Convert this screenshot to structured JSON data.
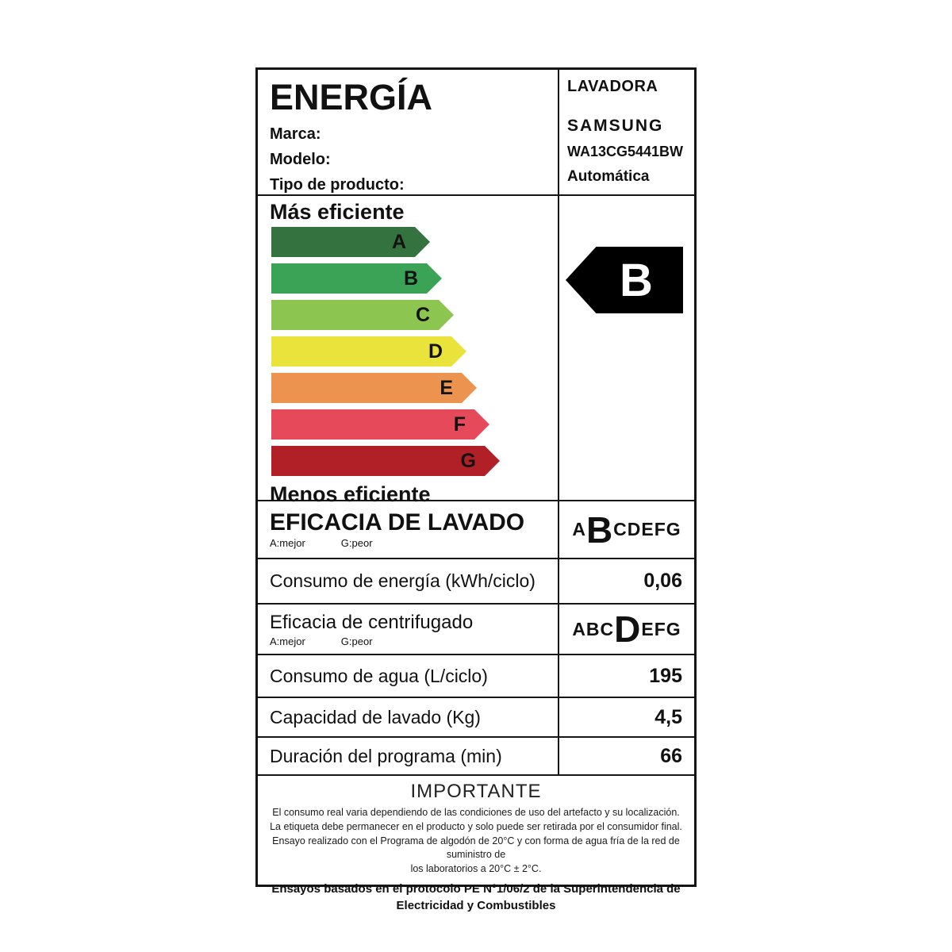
{
  "header": {
    "title": "ENERGÍA",
    "category": "LAVADORA",
    "brand_label": "Marca:",
    "brand_value": "SAMSUNG",
    "model_label": "Modelo:",
    "model_value": "WA13CG5441BW",
    "type_label": "Tipo de producto:",
    "type_value": "Automática"
  },
  "scale": {
    "more_efficient": "Más eficiente",
    "less_efficient": "Menos eficiente",
    "arrows": [
      {
        "letter": "A",
        "color": "#347340",
        "length": 200
      },
      {
        "letter": "B",
        "color": "#3aa355",
        "length": 215
      },
      {
        "letter": "C",
        "color": "#8cc650",
        "length": 230
      },
      {
        "letter": "D",
        "color": "#e9e33b",
        "length": 246
      },
      {
        "letter": "E",
        "color": "#ec944f",
        "length": 259
      },
      {
        "letter": "F",
        "color": "#e5495a",
        "length": 275
      },
      {
        "letter": "G",
        "color": "#b02026",
        "length": 288
      }
    ],
    "rating_letter": "B",
    "rating_color": "#000000"
  },
  "wash_efficiency": {
    "title": "EFICACIA DE LAVADO",
    "best": "A:mejor",
    "worst": "G:peor",
    "before": "A",
    "rating": "B",
    "after": "CDEFG"
  },
  "energy_row": {
    "label": "Consumo de energía (kWh/ciclo)",
    "value": "0,06"
  },
  "spin_efficiency": {
    "title": "Eficacia de centrifugado",
    "best": "A:mejor",
    "worst": "G:peor",
    "before": "ABC",
    "rating": "D",
    "after": "EFG"
  },
  "water_row": {
    "label": "Consumo de agua (L/ciclo)",
    "value": "195"
  },
  "capacity_row": {
    "label": "Capacidad de lavado (Kg)",
    "value": "4,5"
  },
  "duration_row": {
    "label": "Duración del programa (min)",
    "value": "66"
  },
  "footer": {
    "title": "IMPORTANTE",
    "lines": [
      "El consumo real varia dependiendo de las condiciones de uso del artefacto y su localización.",
      "La etiqueta debe permanecer en el producto y solo puede ser retirada por el consumidor final.",
      "Ensayo realizado con el Programa de algodón de 20°C y con forma de agua fría de la red de suministro de",
      "los laboratorios a 20°C ± 2°C."
    ],
    "bold_lines": [
      "Ensayos basados en el protocolo PE N°1/06/2 de la Superintendencia de",
      "Electricidad y Combustibles"
    ]
  }
}
